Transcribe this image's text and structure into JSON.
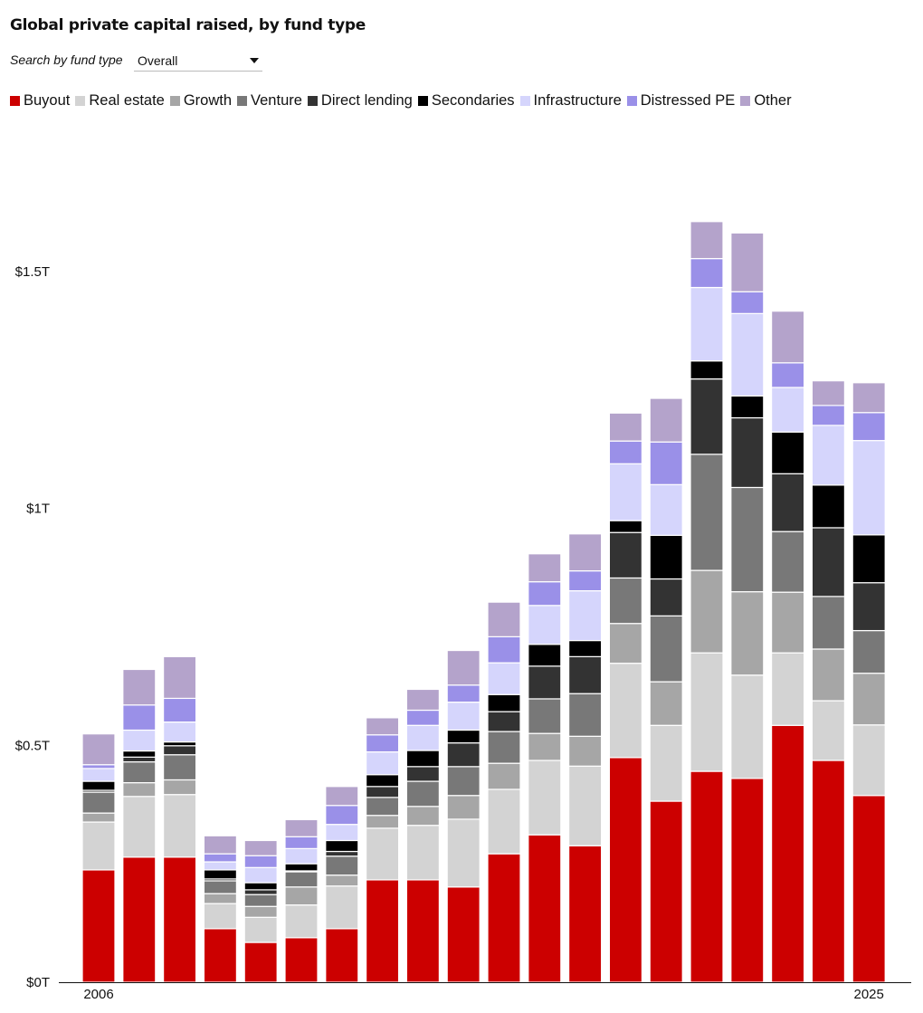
{
  "title": "Global private capital raised, by fund type",
  "filter": {
    "label": "Search by fund type",
    "selected": "Overall"
  },
  "chart_data": {
    "type": "bar",
    "stacked": true,
    "title": "Global private capital raised, by fund type",
    "xlabel": "",
    "ylabel": "",
    "ylim": [
      0,
      1.7
    ],
    "yticks": [
      0,
      0.5,
      1,
      1.5
    ],
    "ytick_labels": [
      "$0T",
      "$0.5T",
      "$1T",
      "$1.5T"
    ],
    "grid": false,
    "legend": "top",
    "categories": [
      "2006",
      "2007",
      "2008",
      "2009",
      "2010",
      "2011",
      "2012",
      "2013",
      "2014",
      "2015",
      "2016",
      "2017",
      "2018",
      "2019",
      "2020",
      "2021",
      "2022",
      "2023",
      "2024",
      "2025"
    ],
    "xtick_labels": {
      "2006": "2006",
      "2025": "2025"
    },
    "series": [
      {
        "name": "Buyout",
        "color": "#cc0000",
        "values": [
          0.237,
          0.264,
          0.264,
          0.113,
          0.084,
          0.094,
          0.113,
          0.216,
          0.216,
          0.201,
          0.271,
          0.311,
          0.288,
          0.474,
          0.382,
          0.445,
          0.43,
          0.542,
          0.468,
          0.394
        ]
      },
      {
        "name": "Real estate",
        "color": "#d3d3d3",
        "values": [
          0.101,
          0.128,
          0.132,
          0.053,
          0.053,
          0.069,
          0.09,
          0.109,
          0.115,
          0.143,
          0.136,
          0.157,
          0.168,
          0.199,
          0.16,
          0.25,
          0.218,
          0.153,
          0.126,
          0.149
        ]
      },
      {
        "name": "Growth",
        "color": "#a6a6a6",
        "values": [
          0.019,
          0.029,
          0.031,
          0.021,
          0.023,
          0.038,
          0.023,
          0.027,
          0.04,
          0.05,
          0.055,
          0.057,
          0.063,
          0.084,
          0.092,
          0.174,
          0.176,
          0.128,
          0.109,
          0.109
        ]
      },
      {
        "name": "Venture",
        "color": "#787878",
        "values": [
          0.044,
          0.044,
          0.053,
          0.027,
          0.025,
          0.032,
          0.04,
          0.038,
          0.053,
          0.061,
          0.067,
          0.073,
          0.09,
          0.096,
          0.139,
          0.245,
          0.22,
          0.128,
          0.111,
          0.09
        ]
      },
      {
        "name": "Direct lending",
        "color": "#333333",
        "values": [
          0.004,
          0.01,
          0.019,
          0.004,
          0.01,
          0.002,
          0.01,
          0.023,
          0.031,
          0.05,
          0.042,
          0.069,
          0.078,
          0.096,
          0.078,
          0.159,
          0.147,
          0.122,
          0.145,
          0.101
        ]
      },
      {
        "name": "Secondaries",
        "color": "#000000",
        "values": [
          0.019,
          0.013,
          0.008,
          0.019,
          0.015,
          0.015,
          0.023,
          0.025,
          0.034,
          0.027,
          0.036,
          0.046,
          0.034,
          0.025,
          0.092,
          0.038,
          0.046,
          0.088,
          0.09,
          0.101
        ]
      },
      {
        "name": "Infrastructure",
        "color": "#d5d5fc",
        "values": [
          0.027,
          0.044,
          0.042,
          0.017,
          0.032,
          0.032,
          0.034,
          0.048,
          0.053,
          0.059,
          0.067,
          0.082,
          0.105,
          0.12,
          0.107,
          0.155,
          0.174,
          0.094,
          0.126,
          0.199
        ]
      },
      {
        "name": "Distressed PE",
        "color": "#9a90e8",
        "values": [
          0.008,
          0.053,
          0.05,
          0.017,
          0.025,
          0.025,
          0.04,
          0.036,
          0.032,
          0.036,
          0.055,
          0.05,
          0.042,
          0.048,
          0.09,
          0.061,
          0.046,
          0.052,
          0.042,
          0.059
        ]
      },
      {
        "name": "Other",
        "color": "#b4a3cb",
        "values": [
          0.065,
          0.075,
          0.088,
          0.038,
          0.032,
          0.036,
          0.04,
          0.036,
          0.044,
          0.073,
          0.073,
          0.059,
          0.078,
          0.059,
          0.092,
          0.078,
          0.124,
          0.109,
          0.052,
          0.063
        ]
      }
    ]
  }
}
